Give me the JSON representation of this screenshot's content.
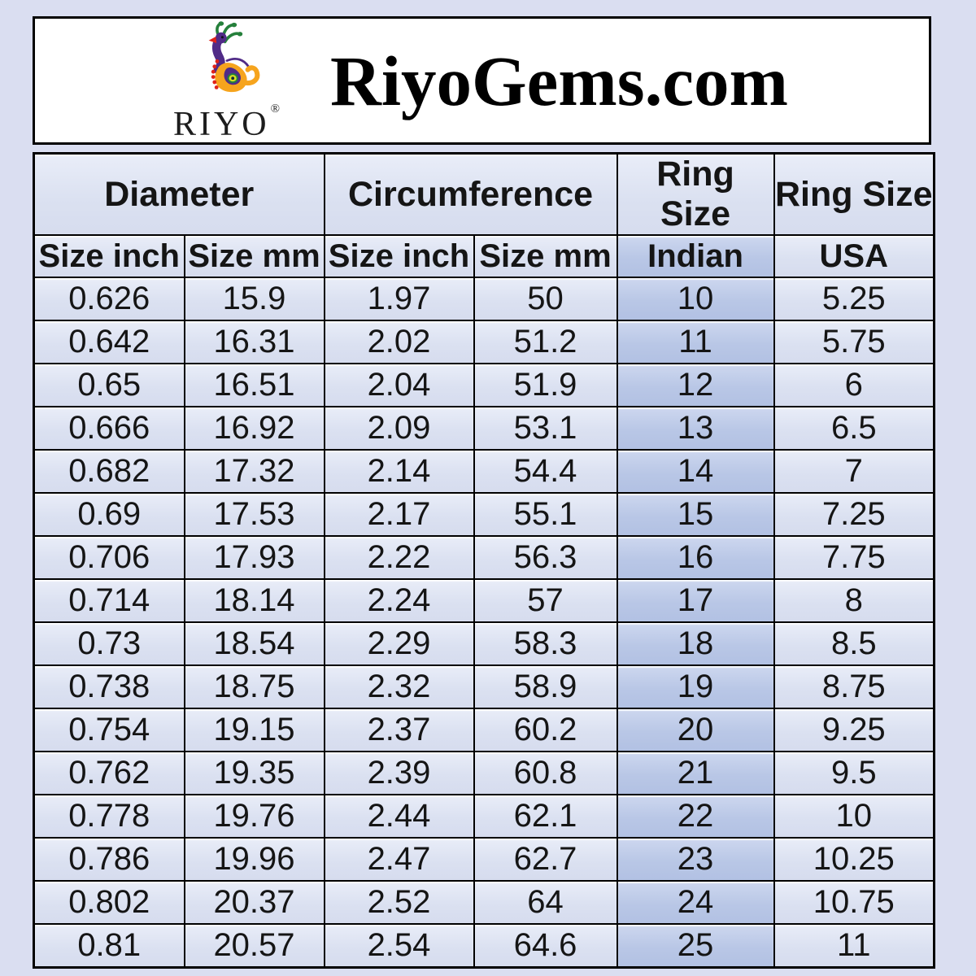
{
  "header": {
    "title": "RiyoGems.com",
    "logo_text": "RIYO",
    "registered_mark": "®"
  },
  "chart_data": {
    "type": "table",
    "title": "RiyoGems.com",
    "group_headers": [
      {
        "label": "Diameter",
        "span": 2
      },
      {
        "label": "Circumference",
        "span": 2
      },
      {
        "label": "Ring Size",
        "span": 1
      },
      {
        "label": "Ring Size",
        "span": 1
      }
    ],
    "sub_headers": [
      "Size inch",
      "Size mm",
      "Size inch",
      "Size mm",
      "Indian",
      "USA"
    ],
    "highlight_column_index": 4,
    "rows": [
      [
        "0.626",
        "15.9",
        "1.97",
        "50",
        "10",
        "5.25"
      ],
      [
        "0.642",
        "16.31",
        "2.02",
        "51.2",
        "11",
        "5.75"
      ],
      [
        "0.65",
        "16.51",
        "2.04",
        "51.9",
        "12",
        "6"
      ],
      [
        "0.666",
        "16.92",
        "2.09",
        "53.1",
        "13",
        "6.5"
      ],
      [
        "0.682",
        "17.32",
        "2.14",
        "54.4",
        "14",
        "7"
      ],
      [
        "0.69",
        "17.53",
        "2.17",
        "55.1",
        "15",
        "7.25"
      ],
      [
        "0.706",
        "17.93",
        "2.22",
        "56.3",
        "16",
        "7.75"
      ],
      [
        "0.714",
        "18.14",
        "2.24",
        "57",
        "17",
        "8"
      ],
      [
        "0.73",
        "18.54",
        "2.29",
        "58.3",
        "18",
        "8.5"
      ],
      [
        "0.738",
        "18.75",
        "2.32",
        "58.9",
        "19",
        "8.75"
      ],
      [
        "0.754",
        "19.15",
        "2.37",
        "60.2",
        "20",
        "9.25"
      ],
      [
        "0.762",
        "19.35",
        "2.39",
        "60.8",
        "21",
        "9.5"
      ],
      [
        "0.778",
        "19.76",
        "2.44",
        "62.1",
        "22",
        "10"
      ],
      [
        "0.786",
        "19.96",
        "2.47",
        "62.7",
        "23",
        "10.25"
      ],
      [
        "0.802",
        "20.37",
        "2.52",
        "64",
        "24",
        "10.75"
      ],
      [
        "0.81",
        "20.57",
        "2.54",
        "64.6",
        "25",
        "11"
      ]
    ]
  },
  "colors": {
    "page_bg": "#dadef1",
    "cell_bg": "#dbe1f1",
    "indian_bg": "#b9c7e6",
    "border": "#000000",
    "header_box_bg": "#ffffff"
  }
}
